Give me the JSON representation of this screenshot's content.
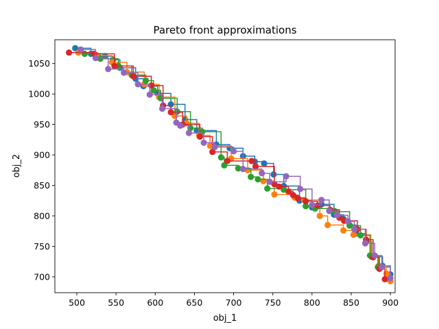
{
  "chart_data": {
    "type": "scatter",
    "title": "Pareto front approximations",
    "xlabel": "obj_1",
    "ylabel": "obj_2",
    "xlim": [
      472,
      906
    ],
    "ylim": [
      674,
      1089
    ],
    "xticks": [
      500,
      550,
      600,
      650,
      700,
      750,
      800,
      850,
      900
    ],
    "yticks": [
      700,
      750,
      800,
      850,
      900,
      950,
      1000,
      1050
    ],
    "grid": false,
    "legend": "none",
    "step_lines": true,
    "series": [
      {
        "color": "#1f77b4",
        "points": [
          [
            498,
            1075
          ],
          [
            518,
            1066
          ],
          [
            536,
            1062
          ],
          [
            546,
            1056
          ],
          [
            555,
            1043
          ],
          [
            575,
            1025
          ],
          [
            585,
            1013
          ],
          [
            603,
            1001
          ],
          [
            620,
            983
          ],
          [
            638,
            958
          ],
          [
            653,
            940
          ],
          [
            678,
            917
          ],
          [
            695,
            911
          ],
          [
            712,
            898
          ],
          [
            727,
            889
          ],
          [
            739,
            886
          ],
          [
            751,
            868
          ],
          [
            764,
            849
          ],
          [
            784,
            825
          ],
          [
            800,
            814
          ],
          [
            812,
            819
          ],
          [
            828,
            802
          ],
          [
            840,
            795
          ],
          [
            848,
            785
          ],
          [
            856,
            771
          ],
          [
            869,
            758
          ],
          [
            876,
            733
          ],
          [
            890,
            718
          ],
          [
            900,
            704
          ]
        ]
      },
      {
        "color": "#ff7f0e",
        "points": [
          [
            502,
            1068
          ],
          [
            526,
            1063
          ],
          [
            545,
            1052
          ],
          [
            564,
            1036
          ],
          [
            586,
            1016
          ],
          [
            605,
            995
          ],
          [
            625,
            964
          ],
          [
            640,
            952
          ],
          [
            656,
            932
          ],
          [
            670,
            915
          ],
          [
            697,
            894
          ],
          [
            718,
            875
          ],
          [
            738,
            857
          ],
          [
            752,
            835
          ],
          [
            778,
            830
          ],
          [
            790,
            826
          ],
          [
            810,
            800
          ],
          [
            820,
            785
          ],
          [
            840,
            776
          ],
          [
            853,
            769
          ],
          [
            875,
            735
          ],
          [
            885,
            718
          ],
          [
            895,
            705
          ],
          [
            900,
            693
          ]
        ]
      },
      {
        "color": "#2ca02c",
        "points": [
          [
            510,
            1066
          ],
          [
            530,
            1058
          ],
          [
            553,
            1046
          ],
          [
            570,
            1031
          ],
          [
            588,
            1022
          ],
          [
            598,
            1006
          ],
          [
            607,
            993
          ],
          [
            628,
            971
          ],
          [
            645,
            944
          ],
          [
            660,
            938
          ],
          [
            684,
            896
          ],
          [
            688,
            883
          ],
          [
            706,
            878
          ],
          [
            722,
            864
          ],
          [
            731,
            860
          ],
          [
            743,
            845
          ],
          [
            764,
            843
          ],
          [
            792,
            816
          ],
          [
            804,
            812
          ],
          [
            830,
            807
          ],
          [
            848,
            784
          ],
          [
            862,
            768
          ],
          [
            874,
            735
          ],
          [
            884,
            716
          ]
        ]
      },
      {
        "color": "#d62728",
        "points": [
          [
            490,
            1068
          ],
          [
            522,
            1066
          ],
          [
            548,
            1046
          ],
          [
            572,
            1029
          ],
          [
            595,
            1014
          ],
          [
            610,
            981
          ],
          [
            620,
            970
          ],
          [
            635,
            950
          ],
          [
            657,
            930
          ],
          [
            673,
            905
          ],
          [
            692,
            890
          ],
          [
            723,
            890
          ],
          [
            728,
            881
          ],
          [
            752,
            852
          ],
          [
            758,
            848
          ],
          [
            770,
            840
          ],
          [
            776,
            834
          ],
          [
            782,
            829
          ],
          [
            792,
            824
          ],
          [
            807,
            817
          ],
          [
            823,
            810
          ],
          [
            835,
            797
          ],
          [
            841,
            792
          ],
          [
            858,
            778
          ],
          [
            869,
            761
          ],
          [
            878,
            732
          ],
          [
            886,
            713
          ],
          [
            893,
            696
          ]
        ]
      },
      {
        "color": "#9467bd",
        "points": [
          [
            505,
            1073
          ],
          [
            524,
            1059
          ],
          [
            540,
            1041
          ],
          [
            560,
            1035
          ],
          [
            578,
            1016
          ],
          [
            593,
            999
          ],
          [
            609,
            976
          ],
          [
            627,
            953
          ],
          [
            632,
            948
          ],
          [
            643,
            936
          ],
          [
            662,
            920
          ],
          [
            676,
            913
          ],
          [
            700,
            906
          ],
          [
            712,
            877
          ],
          [
            736,
            870
          ],
          [
            746,
            856
          ],
          [
            767,
            865
          ],
          [
            785,
            844
          ],
          [
            800,
            818
          ],
          [
            812,
            826
          ],
          [
            822,
            808
          ],
          [
            832,
            801
          ],
          [
            846,
            791
          ],
          [
            854,
            778
          ],
          [
            868,
            755
          ],
          [
            880,
            735
          ],
          [
            889,
            716
          ],
          [
            900,
            698
          ]
        ]
      }
    ]
  }
}
